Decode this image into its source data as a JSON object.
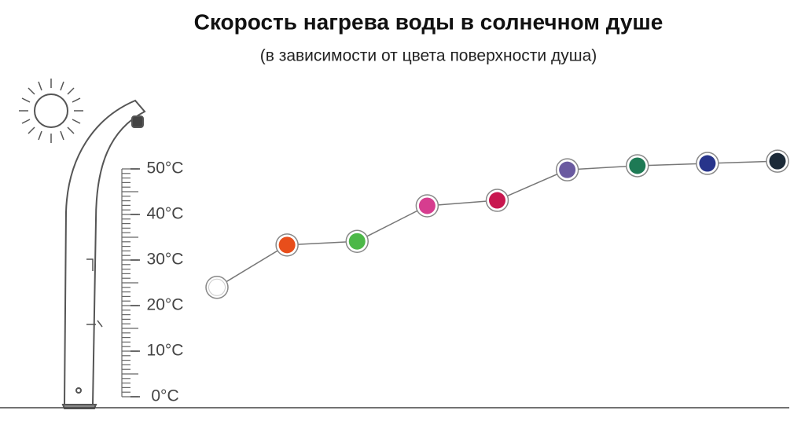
{
  "chart_data": {
    "type": "line",
    "title": "Скорость нагрева воды в солнечном душе",
    "subtitle": "(в зависимости от цвета поверхности душа)",
    "categories": [
      null,
      null,
      null,
      null,
      null,
      null,
      null,
      null,
      null
    ],
    "series": [
      {
        "color": "#777777",
        "point_colors": [
          "#ffffff",
          "#e84e1b",
          "#4cb848",
          "#d63d8f",
          "#c8174f",
          "#6a5aa0",
          "#1e7a55",
          "#27348b",
          "#1c2a38"
        ],
        "values": [
          24,
          33.3,
          34.1,
          41.9,
          43.1,
          49.8,
          50.7,
          51.2,
          51.7
        ]
      }
    ],
    "ylim": [
      0,
      50
    ],
    "yticks": [
      {
        "value": 0,
        "label": "0°C"
      },
      {
        "value": 10,
        "label": "10°C"
      },
      {
        "value": 20,
        "label": "20°C"
      },
      {
        "value": 30,
        "label": "30°C"
      },
      {
        "value": 40,
        "label": "40°C"
      },
      {
        "value": 50,
        "label": "50°C"
      }
    ],
    "grid": false
  }
}
